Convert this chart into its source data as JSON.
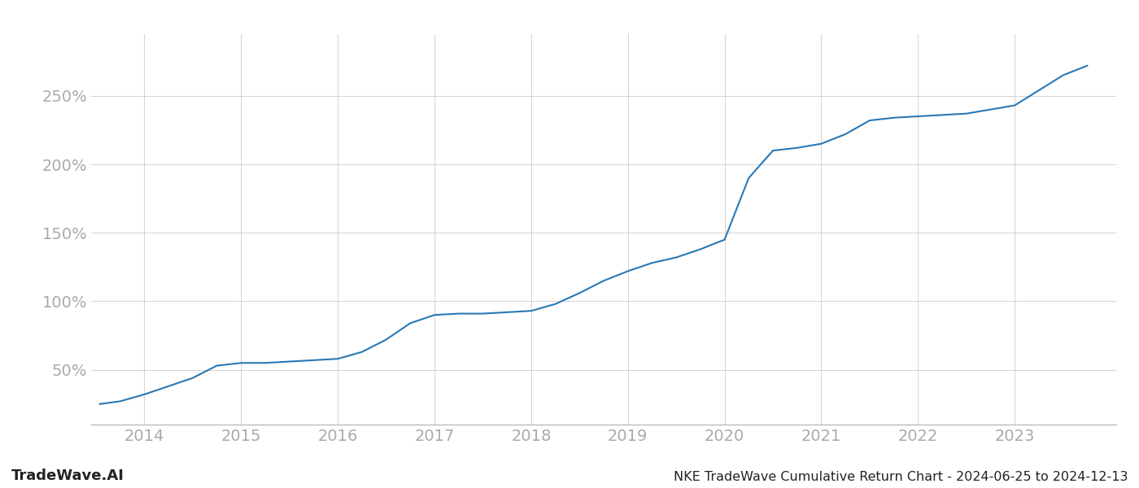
{
  "title": "NKE TradeWave Cumulative Return Chart - 2024-06-25 to 2024-12-13",
  "watermark": "TradeWave.AI",
  "line_color": "#2878b5",
  "background_color": "#ffffff",
  "grid_color": "#cccccc",
  "x_years": [
    2014,
    2015,
    2016,
    2017,
    2018,
    2019,
    2020,
    2021,
    2022,
    2023
  ],
  "x_values": [
    2013.54,
    2013.75,
    2014.0,
    2014.25,
    2014.5,
    2014.75,
    2015.0,
    2015.25,
    2015.5,
    2015.75,
    2016.0,
    2016.25,
    2016.5,
    2016.75,
    2017.0,
    2017.25,
    2017.5,
    2017.75,
    2018.0,
    2018.25,
    2018.5,
    2018.75,
    2019.0,
    2019.25,
    2019.5,
    2019.75,
    2020.0,
    2020.25,
    2020.5,
    2020.75,
    2021.0,
    2021.25,
    2021.5,
    2021.75,
    2022.0,
    2022.25,
    2022.5,
    2022.75,
    2023.0,
    2023.25,
    2023.5,
    2023.75
  ],
  "y_values": [
    25,
    27,
    32,
    38,
    44,
    53,
    55,
    55,
    56,
    57,
    58,
    63,
    72,
    84,
    90,
    91,
    91,
    92,
    93,
    98,
    106,
    115,
    122,
    128,
    132,
    138,
    145,
    190,
    210,
    212,
    215,
    222,
    232,
    234,
    235,
    236,
    237,
    240,
    243,
    254,
    265,
    272
  ],
  "yticks": [
    50,
    100,
    150,
    200,
    250
  ],
  "ylim": [
    10,
    295
  ],
  "xlim": [
    2013.45,
    2024.05
  ],
  "line_width": 1.5,
  "title_fontsize": 11.5,
  "tick_fontsize": 14,
  "watermark_fontsize": 13,
  "tick_color": "#aaaaaa",
  "axis_color": "#bbbbbb"
}
